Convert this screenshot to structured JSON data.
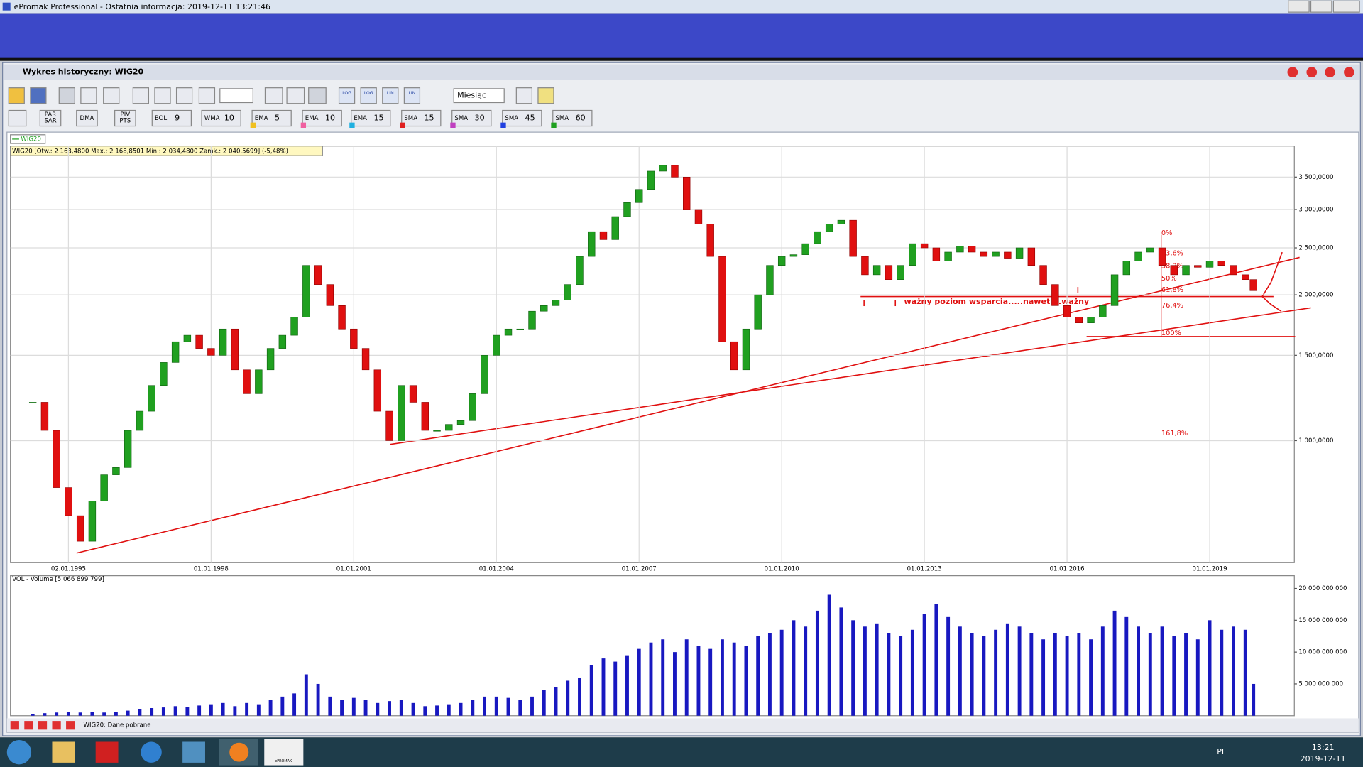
{
  "app": {
    "title": "ePromak Professional - Ostatnia informacja: 2019-12-11 13:21:46"
  },
  "window": {
    "title": "Wykres historyczny: WIG20",
    "period": "Miesiąc",
    "scale_buttons": [
      "LOG",
      "LOG",
      "LIN",
      "LIN"
    ],
    "indicators": [
      {
        "lines": [
          "PAR",
          "SAR"
        ]
      },
      {
        "lines": [
          "DMA"
        ]
      },
      {
        "lines": [
          "PIV",
          "PTS"
        ]
      },
      {
        "name": "BOL",
        "period": "9"
      },
      {
        "name": "WMA",
        "period": "10"
      },
      {
        "name": "EMA",
        "period": "5",
        "marker": "#f0c020"
      },
      {
        "name": "EMA",
        "period": "10",
        "marker": "#f060a0"
      },
      {
        "name": "EMA",
        "period": "15",
        "marker": "#20b0e0"
      },
      {
        "name": "SMA",
        "period": "15",
        "marker": "#e02020"
      },
      {
        "name": "SMA",
        "period": "30",
        "marker": "#c040c0"
      },
      {
        "name": "SMA",
        "period": "45",
        "marker": "#2040e0"
      },
      {
        "name": "SMA",
        "period": "60",
        "marker": "#20a020"
      }
    ]
  },
  "chart_data": [
    {
      "type": "candlestick",
      "info": "WIG20 [Otw.: 2 163,4800  Max.: 2 168,8501  Min.: 2 034,4800  Zamk.: 2 040,5699] (-5,48%)",
      "log_scale": true,
      "grid": true,
      "up_color": "#20a020",
      "down_color": "#e01010",
      "xlim": [
        1993.78,
        2020.78
      ],
      "ylim": [
        560,
        4055
      ],
      "xticks": [
        {
          "value": 1995,
          "label": "02.01.1995"
        },
        {
          "value": 1998,
          "label": "01.01.1998"
        },
        {
          "value": 2001,
          "label": "01.01.2001"
        },
        {
          "value": 2004,
          "label": "01.01.2004"
        },
        {
          "value": 2007,
          "label": "01.01.2007"
        },
        {
          "value": 2010,
          "label": "01.01.2010"
        },
        {
          "value": 2013,
          "label": "01.01.2013"
        },
        {
          "value": 2016,
          "label": "01.01.2016"
        },
        {
          "value": 2019,
          "label": "01.01.2019"
        }
      ],
      "yticks": [
        {
          "value": 1000,
          "label": "1 000,0000"
        },
        {
          "value": 1500,
          "label": "1 500,0000"
        },
        {
          "value": 2000,
          "label": "2 000,0000"
        },
        {
          "value": 2500,
          "label": "2 500,0000"
        },
        {
          "value": 3000,
          "label": "3 000,0000"
        },
        {
          "value": 3500,
          "label": "3 500,0000"
        }
      ],
      "x": [
        1994.25,
        1994.5,
        1994.75,
        1995,
        1995.25,
        1995.5,
        1995.75,
        1996,
        1996.25,
        1996.5,
        1996.75,
        1997,
        1997.25,
        1997.5,
        1997.75,
        1998,
        1998.25,
        1998.5,
        1998.75,
        1999,
        1999.25,
        1999.5,
        1999.75,
        2000,
        2000.25,
        2000.5,
        2000.75,
        2001,
        2001.25,
        2001.5,
        2001.75,
        2002,
        2002.25,
        2002.5,
        2002.75,
        2003,
        2003.25,
        2003.5,
        2003.75,
        2004,
        2004.25,
        2004.5,
        2004.75,
        2005,
        2005.25,
        2005.5,
        2005.75,
        2006,
        2006.25,
        2006.5,
        2006.75,
        2007,
        2007.25,
        2007.5,
        2007.75,
        2008,
        2008.25,
        2008.5,
        2008.75,
        2009,
        2009.25,
        2009.5,
        2009.75,
        2010,
        2010.25,
        2010.5,
        2010.75,
        2011,
        2011.25,
        2011.5,
        2011.75,
        2012,
        2012.25,
        2012.5,
        2012.75,
        2013,
        2013.25,
        2013.5,
        2013.75,
        2014,
        2014.25,
        2014.5,
        2014.75,
        2015,
        2015.25,
        2015.5,
        2015.75,
        2016,
        2016.25,
        2016.5,
        2016.75,
        2017,
        2017.25,
        2017.5,
        2017.75,
        2018,
        2018.25,
        2018.5,
        2018.75,
        2019,
        2019.25,
        2019.5,
        2019.75,
        2019.92
      ],
      "series": [
        {
          "name": "WIG20",
          "values": [
            1200,
            1050,
            800,
            700,
            620,
            750,
            850,
            880,
            1050,
            1150,
            1300,
            1450,
            1600,
            1650,
            1550,
            1500,
            1700,
            1400,
            1250,
            1400,
            1550,
            1650,
            1800,
            2300,
            2100,
            1900,
            1700,
            1550,
            1400,
            1150,
            1000,
            1300,
            1200,
            1050,
            1050,
            1080,
            1100,
            1250,
            1500,
            1650,
            1700,
            1700,
            1850,
            1900,
            1950,
            2100,
            2400,
            2700,
            2600,
            2900,
            3100,
            3300,
            3600,
            3700,
            3500,
            3000,
            2800,
            2400,
            1600,
            1400,
            1700,
            2000,
            2300,
            2400,
            2420,
            2550,
            2700,
            2800,
            2850,
            2400,
            2200,
            2300,
            2150,
            2300,
            2550,
            2500,
            2350,
            2450,
            2520,
            2450,
            2400,
            2450,
            2380,
            2500,
            2300,
            2100,
            1900,
            1800,
            1750,
            1800,
            1900,
            2200,
            2350,
            2450,
            2500,
            2300,
            2200,
            2300,
            2280,
            2350,
            2300,
            2200,
            2150,
            2040
          ]
        }
      ],
      "annotations": {
        "support": "ważny poziom wsparcia.....nawet b.ważny",
        "fib": [
          "0%",
          "23,6%",
          "38,2%",
          "50%",
          "61,8%",
          "76,4%",
          "100%",
          "161,8%"
        ]
      }
    },
    {
      "type": "bar",
      "title": "VOL - Volume [5 066 899 799]",
      "color": "#1818c0",
      "xlim": [
        1993.78,
        2020.78
      ],
      "ylim": [
        0,
        22000000000
      ],
      "yticks": [
        {
          "value": 5000000000,
          "label": "5 000 000 000"
        },
        {
          "value": 10000000000,
          "label": "10 000 000 000"
        },
        {
          "value": 15000000000,
          "label": "15 000 000 000"
        },
        {
          "value": 20000000000,
          "label": "20 000 000 000"
        }
      ],
      "x": [
        1994.25,
        1994.5,
        1994.75,
        1995,
        1995.25,
        1995.5,
        1995.75,
        1996,
        1996.25,
        1996.5,
        1996.75,
        1997,
        1997.25,
        1997.5,
        1997.75,
        1998,
        1998.25,
        1998.5,
        1998.75,
        1999,
        1999.25,
        1999.5,
        1999.75,
        2000,
        2000.25,
        2000.5,
        2000.75,
        2001,
        2001.25,
        2001.5,
        2001.75,
        2002,
        2002.25,
        2002.5,
        2002.75,
        2003,
        2003.25,
        2003.5,
        2003.75,
        2004,
        2004.25,
        2004.5,
        2004.75,
        2005,
        2005.25,
        2005.5,
        2005.75,
        2006,
        2006.25,
        2006.5,
        2006.75,
        2007,
        2007.25,
        2007.5,
        2007.75,
        2008,
        2008.25,
        2008.5,
        2008.75,
        2009,
        2009.25,
        2009.5,
        2009.75,
        2010,
        2010.25,
        2010.5,
        2010.75,
        2011,
        2011.25,
        2011.5,
        2011.75,
        2012,
        2012.25,
        2012.5,
        2012.75,
        2013,
        2013.25,
        2013.5,
        2013.75,
        2014,
        2014.25,
        2014.5,
        2014.75,
        2015,
        2015.25,
        2015.5,
        2015.75,
        2016,
        2016.25,
        2016.5,
        2016.75,
        2017,
        2017.25,
        2017.5,
        2017.75,
        2018,
        2018.25,
        2018.5,
        2018.75,
        2019,
        2019.25,
        2019.5,
        2019.75,
        2019.92
      ],
      "values": [
        300000000,
        400000000,
        500000000,
        600000000,
        500000000,
        600000000,
        500000000,
        600000000,
        800000000,
        1000000000,
        1200000000,
        1300000000,
        1500000000,
        1400000000,
        1600000000,
        1800000000,
        2000000000,
        1500000000,
        2000000000,
        1800000000,
        2500000000,
        3000000000,
        3500000000,
        6500000000,
        5000000000,
        3000000000,
        2500000000,
        2800000000,
        2500000000,
        2000000000,
        2300000000,
        2500000000,
        2000000000,
        1500000000,
        1600000000,
        1800000000,
        2000000000,
        2500000000,
        3000000000,
        3000000000,
        2800000000,
        2500000000,
        3000000000,
        4000000000,
        4500000000,
        5500000000,
        6000000000,
        8000000000,
        9000000000,
        8500000000,
        9500000000,
        10500000000,
        11500000000,
        12000000000,
        10000000000,
        12000000000,
        11000000000,
        10500000000,
        12000000000,
        11500000000,
        11000000000,
        12500000000,
        13000000000,
        13500000000,
        15000000000,
        14000000000,
        16500000000,
        19000000000,
        17000000000,
        15000000000,
        14000000000,
        14500000000,
        13000000000,
        12500000000,
        13500000000,
        16000000000,
        17500000000,
        15500000000,
        14000000000,
        13000000000,
        12500000000,
        13500000000,
        14500000000,
        14000000000,
        13000000000,
        12000000000,
        13000000000,
        12500000000,
        13000000000,
        12000000000,
        14000000000,
        16500000000,
        15500000000,
        14000000000,
        13000000000,
        14000000000,
        12500000000,
        13000000000,
        12000000000,
        15000000000,
        13500000000,
        14000000000,
        13500000000,
        5000000000
      ]
    }
  ],
  "status": "WIG20: Dane pobrane",
  "taskbar": {
    "language": "PL",
    "time": "13:21",
    "date": "2019-12-11",
    "app_label": "ePROMAK"
  }
}
